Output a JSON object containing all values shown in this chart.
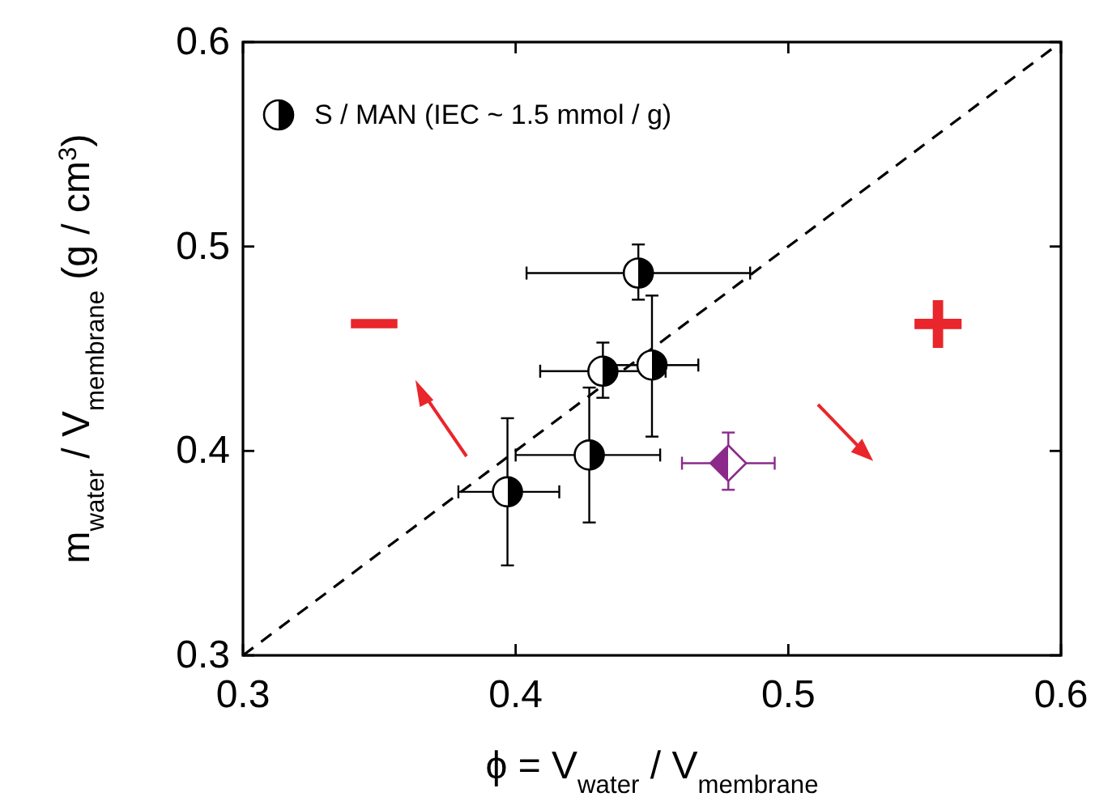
{
  "chart_data": {
    "type": "scatter",
    "xlabel": "ϕ = V$_{water}$ / V$_{membrane}$",
    "ylabel": "m$_{water}$ / V$_{membrane}$ (g / cm$^{3}$)",
    "xlim": [
      0.3,
      0.6
    ],
    "ylim": [
      0.3,
      0.6
    ],
    "xticks": [
      0.3,
      0.4,
      0.5,
      0.6
    ],
    "yticks": [
      0.3,
      0.4,
      0.5,
      0.6
    ],
    "grid": false,
    "legend": "top left",
    "series": [
      {
        "type": "line",
        "x": [
          0.3,
          0.6
        ],
        "values": [
          0.3,
          0.6
        ],
        "color": "#000000",
        "line_style": "dashed"
      },
      {
        "color": "#8b2a8b",
        "marker": "diamond",
        "x": [
          0.478
        ],
        "values": [
          0.394
        ],
        "errors": [
          [
            0.381,
            0.409
          ]
        ],
        "xerrors": [
          [
            0.461,
            0.495
          ]
        ]
      },
      {
        "name": "S / MAN (IEC ~ 1.5 mmol / g)",
        "color": "#000000",
        "marker": "circle",
        "x": [
          0.397,
          0.427,
          0.432,
          0.45,
          0.445
        ],
        "values": [
          0.38,
          0.398,
          0.439,
          0.442,
          0.487
        ],
        "errors": [
          [
            0.344,
            0.416
          ],
          [
            0.365,
            0.431
          ],
          [
            0.426,
            0.453
          ],
          [
            0.407,
            0.476
          ],
          [
            0.474,
            0.501
          ]
        ],
        "xerrors": [
          [
            0.379,
            0.416
          ],
          [
            0.4,
            0.453
          ],
          [
            0.409,
            0.455
          ],
          [
            0.433,
            0.467
          ],
          [
            0.404,
            0.486
          ]
        ]
      }
    ],
    "annotations": [
      "–",
      "+"
    ]
  }
}
